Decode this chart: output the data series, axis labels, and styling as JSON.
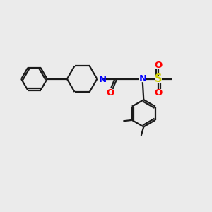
{
  "background_color": "#ebebeb",
  "bond_color": "#1a1a1a",
  "N_color": "#0000ff",
  "O_color": "#ff0000",
  "S_color": "#cccc00",
  "line_width": 1.6,
  "font_size": 9.5,
  "figsize": [
    3.0,
    3.0
  ],
  "dpi": 100,
  "xlim": [
    0,
    10
  ],
  "ylim": [
    0,
    10
  ]
}
